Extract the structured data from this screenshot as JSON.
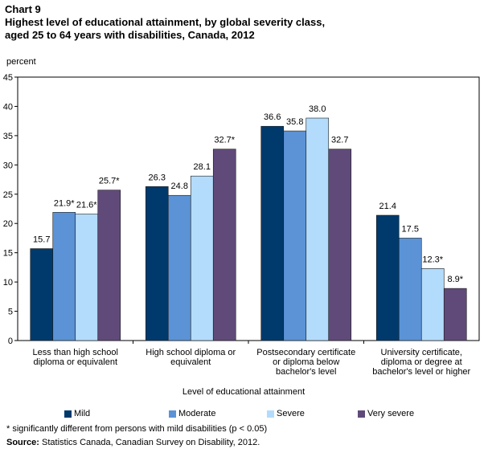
{
  "header": {
    "chart_label": "Chart 9",
    "title_lines": [
      "Highest level of educational attainment, by global severity class,",
      "aged 25 to 64 years with disabilities, Canada, 2012"
    ]
  },
  "colors": {
    "mild": "#003a6d",
    "moderate": "#5b93d6",
    "severe": "#b3dcfc",
    "very_severe": "#604a7a",
    "axis": "#000000",
    "grid": "#c8c8c8"
  },
  "chart_data": {
    "type": "bar",
    "ylabel": "percent",
    "xlabel": "Level of educational attainment",
    "ylim": [
      0,
      45
    ],
    "yticks": [
      0,
      5,
      10,
      15,
      20,
      25,
      30,
      35,
      40,
      45
    ],
    "grid": false,
    "legend_position": "bottom",
    "categories": [
      [
        "Less than high school",
        "diploma or equivalent"
      ],
      [
        "High school diploma or",
        "equivalent"
      ],
      [
        "Postsecondary certificate",
        "or diploma below",
        "bachelor's level"
      ],
      [
        "University certificate,",
        "diploma or degree at",
        "bachelor's level or higher"
      ]
    ],
    "series": [
      {
        "name": "Mild",
        "color_key": "mild",
        "values": [
          15.7,
          26.3,
          36.6,
          21.4
        ],
        "labels": [
          "15.7",
          "26.3",
          "36.6",
          "21.4"
        ]
      },
      {
        "name": "Moderate",
        "color_key": "moderate",
        "values": [
          21.9,
          24.8,
          35.8,
          17.5
        ],
        "labels": [
          "21.9*",
          "24.8",
          "35.8",
          "17.5"
        ]
      },
      {
        "name": "Severe",
        "color_key": "severe",
        "values": [
          21.6,
          28.1,
          38.0,
          12.3
        ],
        "labels": [
          "21.6*",
          "28.1",
          "38.0",
          "12.3*"
        ]
      },
      {
        "name": "Very severe",
        "color_key": "very_severe",
        "values": [
          25.7,
          32.7,
          32.7,
          8.9
        ],
        "labels": [
          "25.7*",
          "32.7*",
          "32.7",
          "8.9*"
        ]
      }
    ]
  },
  "legend": {
    "items": [
      {
        "label": "Mild",
        "color_key": "mild"
      },
      {
        "label": "Moderate",
        "color_key": "moderate"
      },
      {
        "label": "Severe",
        "color_key": "severe"
      },
      {
        "label": "Very severe",
        "color_key": "very_severe"
      }
    ]
  },
  "footer": {
    "note": "* significantly different from persons with mild disabilities (p < 0.05)",
    "source_label": "Source:",
    "source_text": "Statistics Canada, Canadian Survey on Disability, 2012."
  }
}
